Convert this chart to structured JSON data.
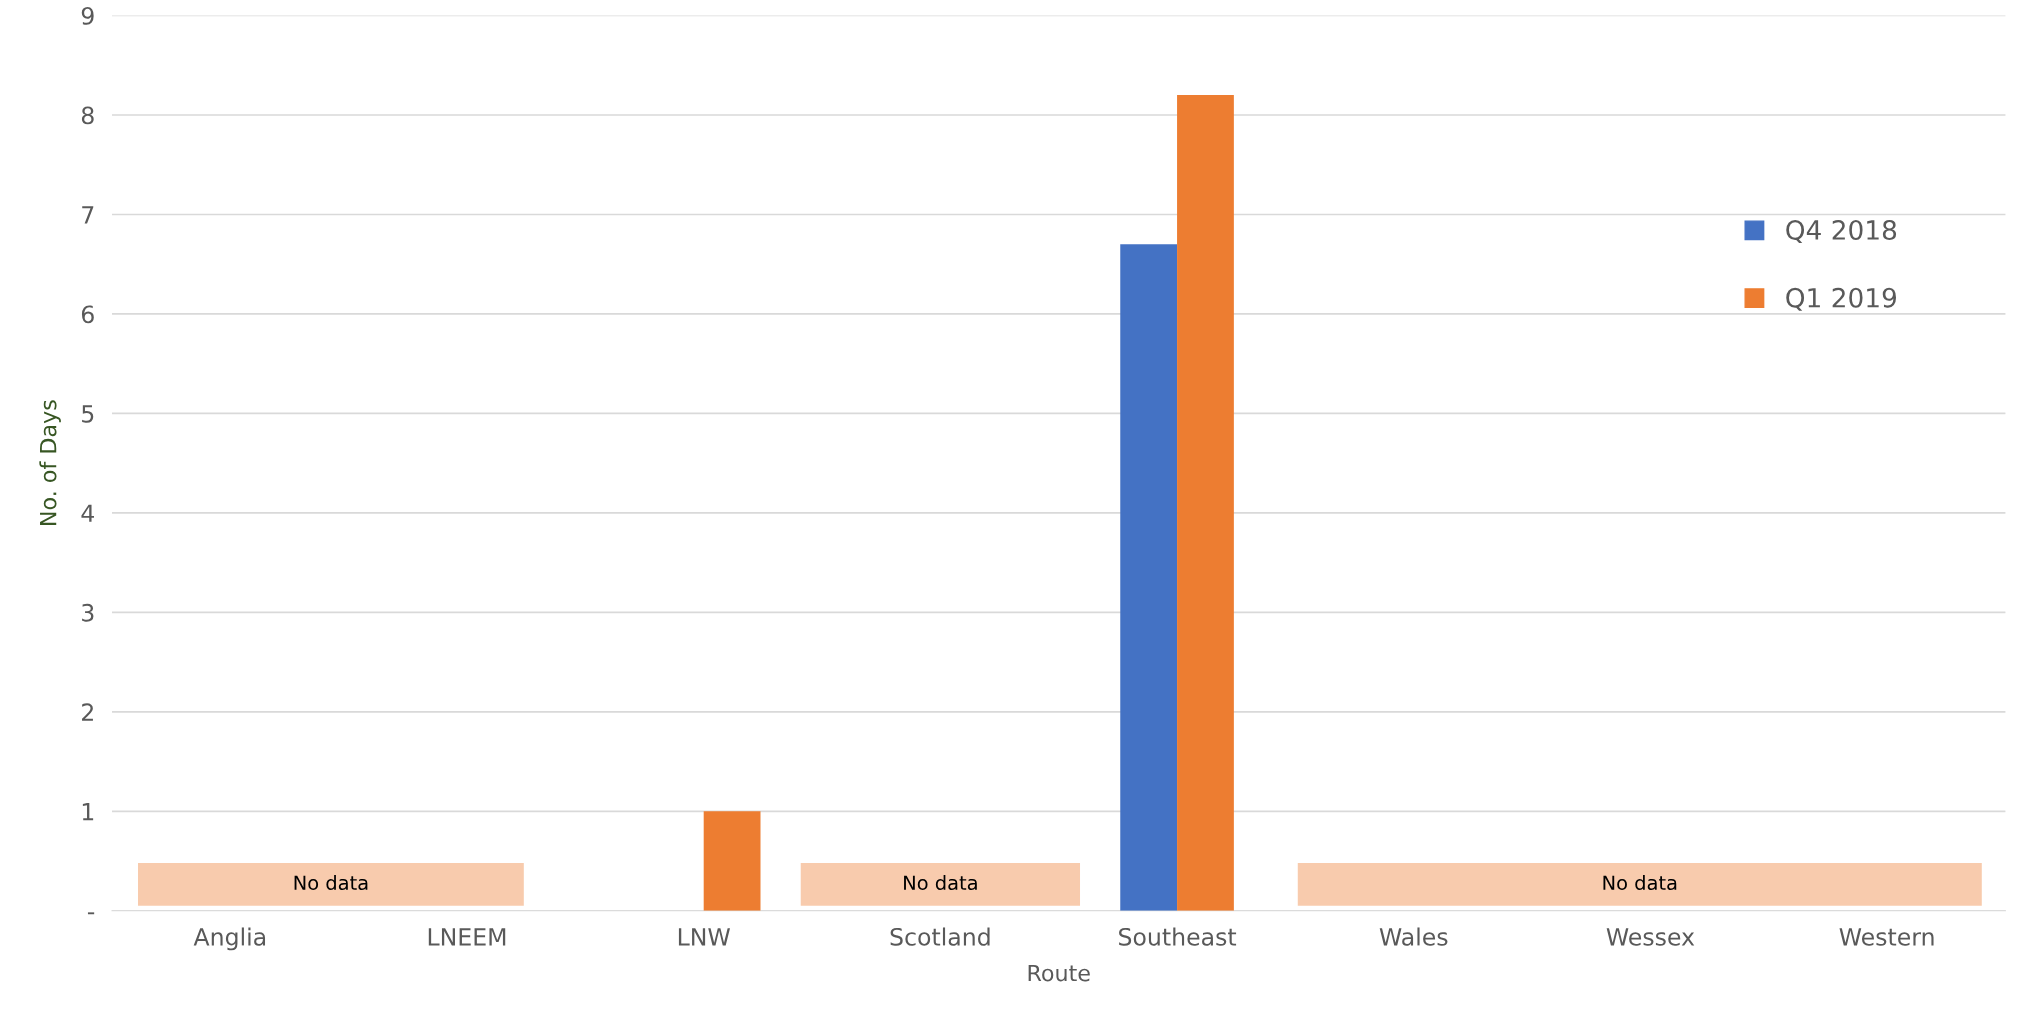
{
  "chart_data": {
    "type": "bar",
    "xlabel": "Route",
    "ylabel": "No. of Days",
    "categories": [
      "Anglia",
      "LNEEM",
      "LNW",
      "Scotland",
      "Southeast",
      "Wales",
      "Wessex",
      "Western"
    ],
    "series": [
      {
        "name": "Q4 2018",
        "color": "#4472c4",
        "values": [
          null,
          null,
          null,
          null,
          6.7,
          null,
          null,
          null
        ]
      },
      {
        "name": "Q1 2019",
        "color": "#ed7d31",
        "values": [
          null,
          null,
          1.0,
          null,
          8.2,
          null,
          null,
          null
        ]
      }
    ],
    "ylim": [
      0,
      9
    ],
    "yticks": [
      {
        "value": 0,
        "label": "-"
      },
      1,
      2,
      3,
      4,
      5,
      6,
      7,
      8,
      9
    ],
    "grid": "y",
    "legend": "right",
    "annotations": [
      "No data",
      "No data",
      "No data"
    ]
  }
}
